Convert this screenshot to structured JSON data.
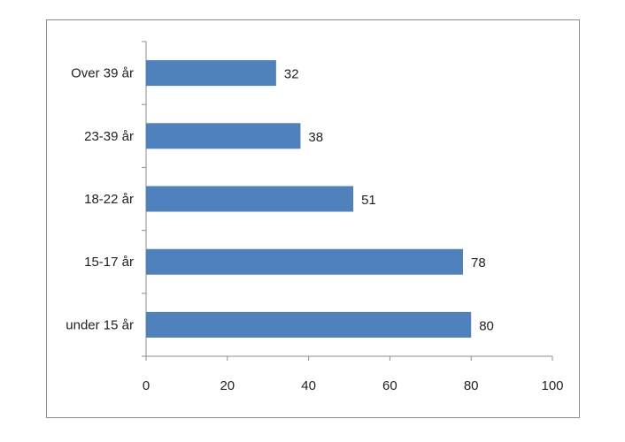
{
  "chart_data": {
    "type": "bar",
    "orientation": "horizontal",
    "categories": [
      "under 15 år",
      "15-17 år",
      "18-22 år",
      "23-39 år",
      "Over 39 år"
    ],
    "values": [
      80,
      78,
      51,
      38,
      32
    ],
    "data_labels": [
      "80",
      "78",
      "51",
      "38",
      "32"
    ],
    "xlim": [
      0,
      100
    ],
    "x_ticks": [
      "0",
      "20",
      "40",
      "60",
      "80",
      "100"
    ],
    "grid": false,
    "legend": "none",
    "bar_color": "#4f81bd"
  }
}
